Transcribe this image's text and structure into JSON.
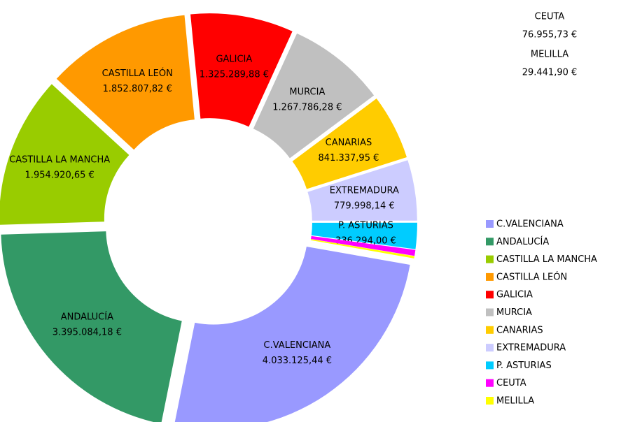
{
  "chart_data": {
    "type": "donut",
    "categories": [
      "C.VALENCIANA",
      "ANDALUCÍA",
      "CASTILLA LA MANCHA",
      "CASTILLA LEÓN",
      "GALICIA",
      "MURCIA",
      "CANARIAS",
      "EXTREMADURA",
      "P. ASTURIAS",
      "CEUTA",
      "MELILLA"
    ],
    "values": [
      4033125.44,
      3395084.18,
      1954920.65,
      1852807.82,
      1325289.88,
      1267786.28,
      841337.95,
      779998.14,
      336294.0,
      76955.73,
      29441.9
    ],
    "value_labels": [
      "4.033.125,44 €",
      "3.395.084,18 €",
      "1.954.920,65 €",
      "1.852.807,82 €",
      "1.325.289,88 €",
      "1.267.786,28 €",
      "841.337,95 €",
      "779.998,14 €",
      "336.294,00 €",
      "76.955,73 €",
      "29.441,90 €"
    ],
    "colors": [
      "#9999ff",
      "#339966",
      "#99cc00",
      "#ff9900",
      "#ff0000",
      "#c0c0c0",
      "#ffcc00",
      "#ccccff",
      "#00ccff",
      "#ff00ff",
      "#ffff00"
    ]
  }
}
